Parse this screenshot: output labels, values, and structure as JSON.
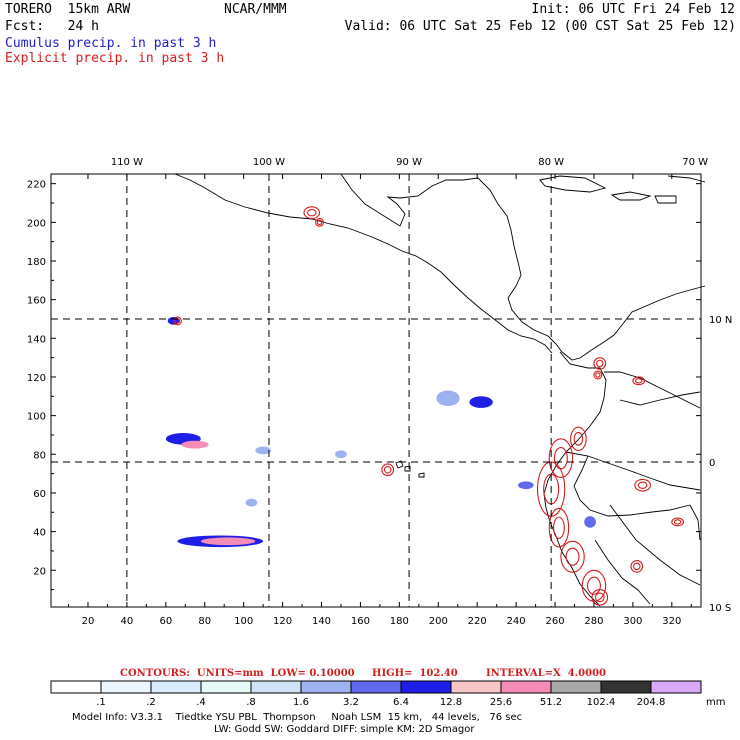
{
  "header": {
    "model": "TORERO  15km ARW",
    "org": "NCAR/MMM",
    "init": "Init: 06 UTC Fri 24 Feb 12",
    "fcst": "Fcst:   24 h",
    "valid": "Valid: 06 UTC Sat 25 Feb 12 (00 CST Sat 25 Feb 12)",
    "field1": "Cumulus precip. in past 3 h",
    "field2": "Explicit precip. in past 3 h",
    "field1_color": "#1e1ec8",
    "field2_color": "#d21e1e"
  },
  "chart_data": {
    "type": "heatmap",
    "x_ticks": [
      20,
      40,
      60,
      80,
      100,
      120,
      140,
      160,
      180,
      200,
      220,
      240,
      260,
      280,
      300,
      320
    ],
    "y_ticks": [
      20,
      40,
      60,
      80,
      100,
      120,
      140,
      160,
      180,
      200,
      220
    ],
    "xlim": [
      1,
      335
    ],
    "ylim": [
      1,
      225
    ],
    "lon_labels": [
      {
        "label": "110 W",
        "x": 40
      },
      {
        "label": "100 W",
        "x": 113
      },
      {
        "label": "90 W",
        "x": 185
      },
      {
        "label": "80 W",
        "x": 258
      },
      {
        "label": "70 W",
        "x": 332
      }
    ],
    "lat_labels": [
      {
        "label": "10 N",
        "y": 150
      },
      {
        "label": "0",
        "y": 76
      },
      {
        "label": "10 S",
        "y": 1
      }
    ],
    "grid_lon_x": [
      40,
      113,
      185,
      258
    ],
    "grid_lat_y": [
      150,
      76
    ],
    "precip_blobs": [
      {
        "x": 69,
        "y": 88,
        "rx": 9,
        "ry": 3,
        "level": 6.4
      },
      {
        "x": 75,
        "y": 85,
        "rx": 7,
        "ry": 2,
        "level": 25.6
      },
      {
        "x": 88,
        "y": 35,
        "rx": 22,
        "ry": 3,
        "level": 6.4
      },
      {
        "x": 92,
        "y": 35,
        "rx": 14,
        "ry": 2,
        "level": 25.6
      },
      {
        "x": 222,
        "y": 107,
        "rx": 6,
        "ry": 3,
        "level": 6.4
      },
      {
        "x": 64,
        "y": 149,
        "rx": 3,
        "ry": 2,
        "level": 6.4
      },
      {
        "x": 205,
        "y": 109,
        "rx": 6,
        "ry": 4,
        "level": 1.6
      },
      {
        "x": 150,
        "y": 80,
        "rx": 3,
        "ry": 2,
        "level": 1.6
      },
      {
        "x": 245,
        "y": 64,
        "rx": 4,
        "ry": 2,
        "level": 3.2
      },
      {
        "x": 278,
        "y": 45,
        "rx": 3,
        "ry": 3,
        "level": 3.2
      },
      {
        "x": 104,
        "y": 55,
        "rx": 3,
        "ry": 2,
        "level": 1.6
      },
      {
        "x": 110,
        "y": 82,
        "rx": 4,
        "ry": 2,
        "level": 1.6
      }
    ],
    "explicit_contours": [
      {
        "x": 135,
        "y": 205,
        "rx": 4,
        "ry": 3
      },
      {
        "x": 139,
        "y": 200,
        "rx": 2,
        "ry": 2
      },
      {
        "x": 174,
        "y": 72,
        "rx": 3,
        "ry": 3
      },
      {
        "x": 283,
        "y": 127,
        "rx": 3,
        "ry": 3
      },
      {
        "x": 282,
        "y": 121,
        "rx": 2,
        "ry": 2
      },
      {
        "x": 303,
        "y": 118,
        "rx": 3,
        "ry": 2
      },
      {
        "x": 272,
        "y": 88,
        "rx": 4,
        "ry": 6
      },
      {
        "x": 263,
        "y": 78,
        "rx": 6,
        "ry": 10
      },
      {
        "x": 258,
        "y": 62,
        "rx": 7,
        "ry": 14
      },
      {
        "x": 262,
        "y": 42,
        "rx": 5,
        "ry": 10
      },
      {
        "x": 269,
        "y": 27,
        "rx": 6,
        "ry": 8
      },
      {
        "x": 280,
        "y": 12,
        "rx": 6,
        "ry": 8
      },
      {
        "x": 283,
        "y": 6,
        "rx": 4,
        "ry": 4
      },
      {
        "x": 305,
        "y": 64,
        "rx": 4,
        "ry": 3
      },
      {
        "x": 302,
        "y": 22,
        "rx": 3,
        "ry": 3
      },
      {
        "x": 323,
        "y": 45,
        "rx": 3,
        "ry": 2
      },
      {
        "x": 66,
        "y": 149,
        "rx": 2,
        "ry": 2
      }
    ]
  },
  "contour_note": {
    "units": "CONTOURS:  UNITS=mm  LOW= 0.10000",
    "high": "HIGH=  102.40",
    "interval": "INTERVAL=X  4.0000"
  },
  "colorbar": {
    "labels": [
      ".1",
      ".2",
      ".4",
      ".8",
      "1.6",
      "3.2",
      "6.4",
      "12.8",
      "25.6",
      "51.2",
      "102.4",
      "204.8"
    ],
    "colors": [
      "#ffffff",
      "#ecf6ff",
      "#d9ecff",
      "#e8faf8",
      "#cfe3f6",
      "#9eb1f0",
      "#6269ec",
      "#1e1ee6",
      "#f7c5c5",
      "#f48cb8",
      "#a9a9a9",
      "#333333",
      "#d9a9f7"
    ],
    "unit": "mm"
  },
  "footer": {
    "line1": "Model Info: V3.3.1    Tiedtke YSU PBL  Thompson     Noah LSM  15 km,   44 levels,   76 sec",
    "line2": "LW: Godd SW: Goddard DIFF: simple KM: 2D Smagor"
  }
}
